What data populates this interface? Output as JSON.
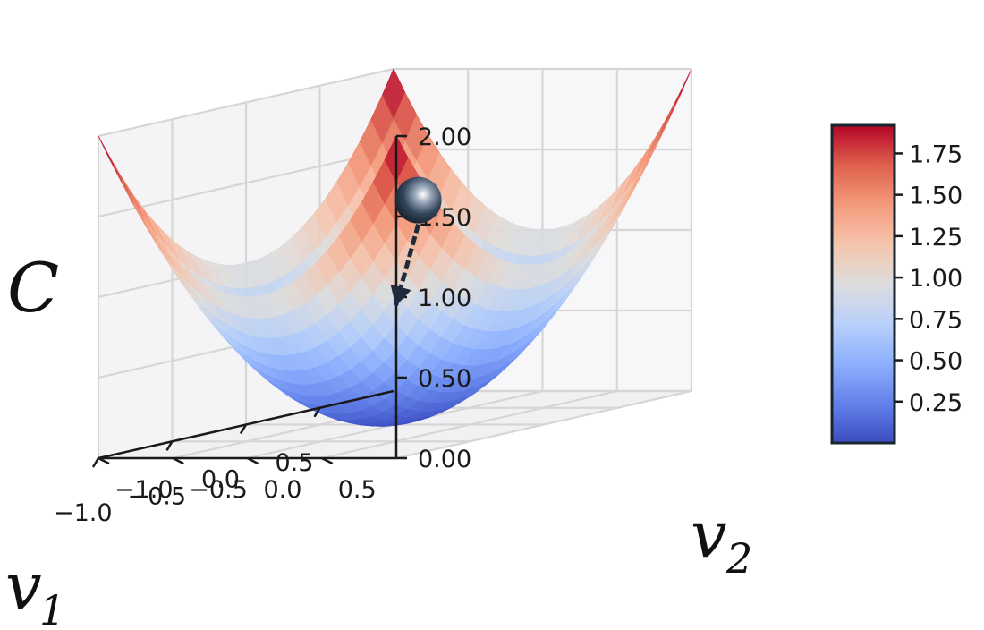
{
  "chart_data": {
    "type": "surface",
    "title": "",
    "function": "C = v1^2 + v2^2",
    "xlabel": "v",
    "xlabel_sub": "1",
    "ylabel": "v",
    "ylabel_sub": "2",
    "zlabel": "C",
    "xlim": [
      -1.0,
      1.0
    ],
    "ylim": [
      -1.0,
      1.0
    ],
    "zlim": [
      0.0,
      2.0
    ],
    "x_ticks": [
      -1.0,
      -0.5,
      0.0,
      0.5
    ],
    "x_tick_labels": [
      "−1.0",
      "−0.5",
      "0.0",
      "0.5"
    ],
    "y_ticks": [
      -1.0,
      -0.5,
      0.0,
      0.5
    ],
    "y_tick_labels": [
      "−1.0",
      "−0.5",
      "0.0",
      "0.5"
    ],
    "z_ticks": [
      0.0,
      0.5,
      1.0,
      1.5,
      2.0
    ],
    "z_tick_labels": [
      "0.00",
      "0.50",
      "1.00",
      "1.50",
      "2.00"
    ],
    "grid": true,
    "colormap": {
      "name": "coolwarm",
      "range": [
        0.0,
        1.92
      ],
      "ticks": [
        0.25,
        0.5,
        0.75,
        1.0,
        1.25,
        1.5,
        1.75
      ],
      "tick_labels": [
        "0.25",
        "0.50",
        "0.75",
        "1.00",
        "1.25",
        "1.50",
        "1.75"
      ],
      "placement": "right"
    },
    "ball": {
      "v1": -0.75,
      "v2": 0.9,
      "C": 1.55
    },
    "arrow": {
      "from": {
        "v1": -0.75,
        "v2": 0.9,
        "C": 1.4
      },
      "to": {
        "v1": -0.55,
        "v2": 0.55,
        "C": 0.85
      }
    }
  },
  "colors": {
    "cmap_low": "#3b4cc0",
    "cmap_mid": "#dddddd",
    "cmap_high": "#b40426",
    "ball": "#1e2b3a",
    "arrow": "#1e2b3a",
    "grid": "#d6d6d6",
    "axis": "#1a1a1a"
  }
}
